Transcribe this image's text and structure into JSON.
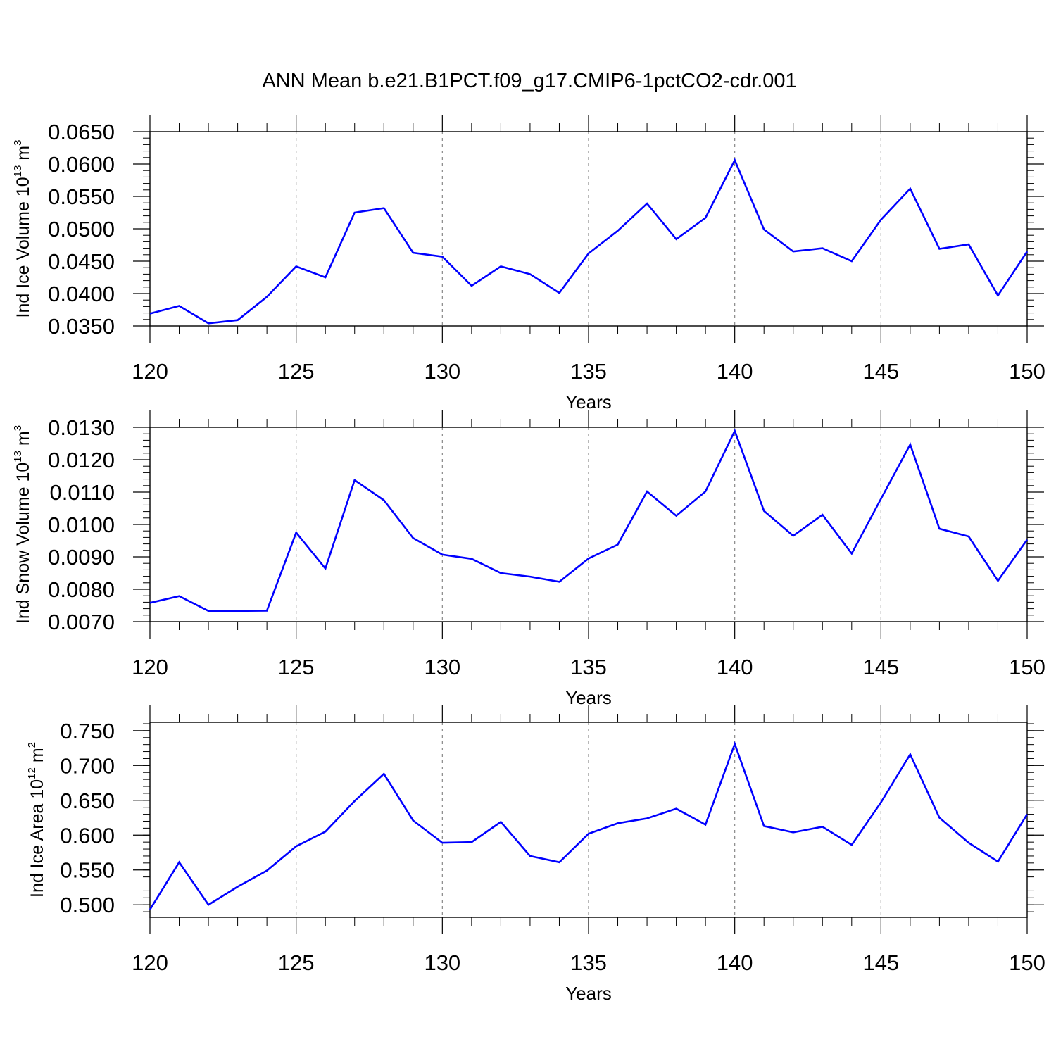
{
  "title": "ANN Mean b.e21.B1PCT.f09_g17.CMIP6-1pctCO2-cdr.001",
  "line_color": "#0000ff",
  "chart_data": [
    {
      "type": "line",
      "xlabel": "Years",
      "ylabel": {
        "text": "Ind Ice Volume 10",
        "exp": "13",
        "unit": " m",
        "unit_exp": "3"
      },
      "xlim": [
        120,
        150
      ],
      "ylim": [
        0.035,
        0.065
      ],
      "xticks": [
        120,
        125,
        130,
        135,
        140,
        145,
        150
      ],
      "yticks": [
        "0.0350",
        "0.0400",
        "0.0450",
        "0.0500",
        "0.0550",
        "0.0600",
        "0.0650"
      ],
      "grid": "vertical dashed at major x ticks",
      "x": [
        120,
        121,
        122,
        123,
        124,
        125,
        126,
        127,
        128,
        129,
        130,
        131,
        132,
        133,
        134,
        135,
        136,
        137,
        138,
        139,
        140,
        141,
        142,
        143,
        144,
        145,
        146,
        147,
        148,
        149,
        150
      ],
      "values": [
        0.0369,
        0.0381,
        0.0354,
        0.0359,
        0.0395,
        0.0442,
        0.0425,
        0.0525,
        0.0532,
        0.0463,
        0.0457,
        0.0412,
        0.0442,
        0.043,
        0.0401,
        0.0462,
        0.0497,
        0.0539,
        0.0484,
        0.0517,
        0.0606,
        0.0499,
        0.0465,
        0.047,
        0.045,
        0.0514,
        0.0562,
        0.0469,
        0.0476,
        0.0397,
        0.0465
      ]
    },
    {
      "type": "line",
      "xlabel": "Years",
      "ylabel": {
        "text": "Ind Snow Volume 10",
        "exp": "13",
        "unit": " m",
        "unit_exp": "3"
      },
      "xlim": [
        120,
        150
      ],
      "ylim": [
        0.007,
        0.013
      ],
      "xticks": [
        120,
        125,
        130,
        135,
        140,
        145,
        150
      ],
      "yticks": [
        "0.0070",
        "0.0080",
        "0.0090",
        "0.0100",
        "0.0110",
        "0.0120",
        "0.0130"
      ],
      "grid": "vertical dashed at major x ticks",
      "x": [
        120,
        121,
        122,
        123,
        124,
        125,
        126,
        127,
        128,
        129,
        130,
        131,
        132,
        133,
        134,
        135,
        136,
        137,
        138,
        139,
        140,
        141,
        142,
        143,
        144,
        145,
        146,
        147,
        148,
        149,
        150
      ],
      "values": [
        0.00758,
        0.00779,
        0.00733,
        0.00733,
        0.00734,
        0.00975,
        0.00864,
        0.01137,
        0.01075,
        0.00958,
        0.00907,
        0.00894,
        0.0085,
        0.00839,
        0.00823,
        0.00895,
        0.00938,
        0.01102,
        0.01027,
        0.01102,
        0.01289,
        0.01042,
        0.00965,
        0.0103,
        0.0091,
        0.01079,
        0.01247,
        0.00987,
        0.00963,
        0.00826,
        0.00953
      ]
    },
    {
      "type": "line",
      "xlabel": "Years",
      "ylabel": {
        "text": "Ind Ice Area 10",
        "exp": "12",
        "unit": " m",
        "unit_exp": "2"
      },
      "xlim": [
        120,
        150
      ],
      "ylim": [
        0.482,
        0.762
      ],
      "xticks": [
        120,
        125,
        130,
        135,
        140,
        145,
        150
      ],
      "yticks": [
        "0.500",
        "0.550",
        "0.600",
        "0.650",
        "0.700",
        "0.750"
      ],
      "ytick_values": [
        0.5,
        0.55,
        0.6,
        0.65,
        0.7,
        0.75
      ],
      "grid": "vertical dashed at major x ticks",
      "x": [
        120,
        121,
        122,
        123,
        124,
        125,
        126,
        127,
        128,
        129,
        130,
        131,
        132,
        133,
        134,
        135,
        136,
        137,
        138,
        139,
        140,
        141,
        142,
        143,
        144,
        145,
        146,
        147,
        148,
        149,
        150
      ],
      "values": [
        0.493,
        0.561,
        0.5,
        0.526,
        0.549,
        0.584,
        0.605,
        0.649,
        0.688,
        0.621,
        0.589,
        0.59,
        0.619,
        0.57,
        0.561,
        0.602,
        0.617,
        0.624,
        0.638,
        0.615,
        0.731,
        0.613,
        0.604,
        0.612,
        0.586,
        0.647,
        0.716,
        0.625,
        0.589,
        0.562,
        0.63
      ]
    }
  ]
}
